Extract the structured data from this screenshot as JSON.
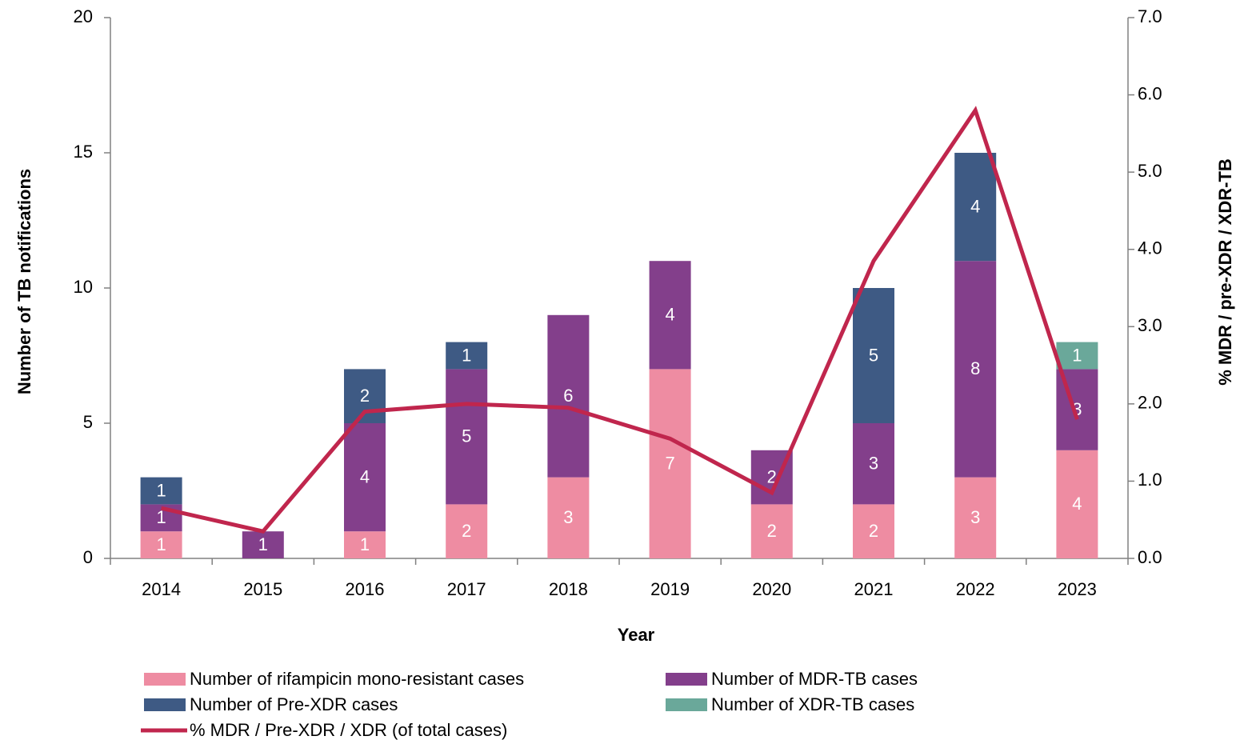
{
  "chart_data": {
    "type": "bar",
    "stacked": true,
    "xlabel": "Year",
    "ylabel": "Number of TB notifications",
    "y2label": "% MDR / pre-XDR / XDR-TB",
    "categories": [
      "2014",
      "2015",
      "2016",
      "2017",
      "2018",
      "2019",
      "2020",
      "2021",
      "2022",
      "2023"
    ],
    "series": [
      {
        "name": "Number of rifampicin mono-resistant cases",
        "color": "#ee8ca2",
        "values": [
          1,
          null,
          1,
          2,
          3,
          7,
          2,
          2,
          3,
          4
        ]
      },
      {
        "name": "Number of MDR-TB cases",
        "color": "#833f8b",
        "values": [
          1,
          1,
          4,
          5,
          6,
          4,
          2,
          3,
          8,
          3
        ]
      },
      {
        "name": "Number of Pre-XDR cases",
        "color": "#3e5a84",
        "values": [
          1,
          null,
          2,
          1,
          null,
          null,
          null,
          5,
          4,
          null
        ]
      },
      {
        "name": "Number of XDR-TB cases",
        "color": "#6aa89a",
        "values": [
          null,
          null,
          null,
          null,
          null,
          null,
          null,
          null,
          null,
          1
        ]
      },
      {
        "name": "% MDR / Pre-XDR / XDR (of total cases)",
        "color": "#c0264d",
        "type": "line",
        "axis": "y2",
        "values": [
          0.65,
          0.35,
          1.9,
          2.0,
          1.95,
          1.55,
          0.85,
          3.85,
          5.8,
          1.8
        ]
      }
    ],
    "ylim": [
      0,
      20
    ],
    "yticks": [
      0,
      5,
      10,
      15,
      20
    ],
    "y2lim": [
      0,
      7
    ],
    "y2ticks": [
      {
        "value": 0,
        "label": "0.0"
      },
      {
        "value": 1,
        "label": "1.0"
      },
      {
        "value": 2,
        "label": "2.0"
      },
      {
        "value": 3,
        "label": "3.0"
      },
      {
        "value": 4,
        "label": "4.0"
      },
      {
        "value": 5,
        "label": "5.0"
      },
      {
        "value": 6,
        "label": "6.0"
      },
      {
        "value": 7,
        "label": "7.0"
      }
    ],
    "grid": false,
    "legend": "bottom"
  }
}
